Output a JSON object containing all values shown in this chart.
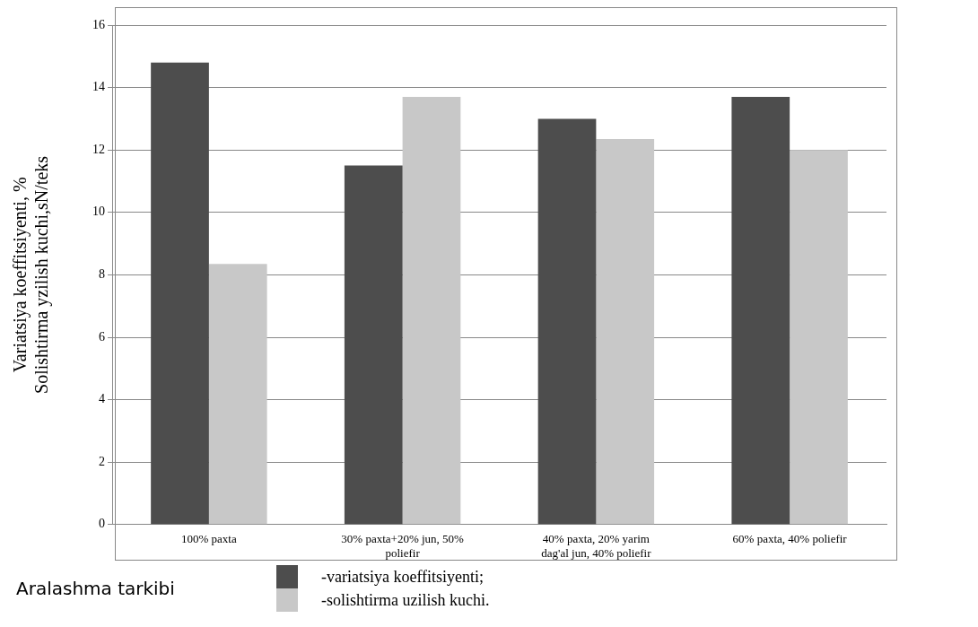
{
  "chart_data": {
    "type": "bar",
    "ylabel": "Variatsiya koeffitsiyenti, %\nSolishtirma yzilish kuchi,sN/teks",
    "xlabel": "Aralashma tarkibi",
    "categories": [
      "100% paxta",
      "30% paxta+20% jun, 50% poliefir",
      "40% paxta, 20% yarim dag'al jun, 40% poliefir",
      "60% paxta, 40% poliefir"
    ],
    "series": [
      {
        "name": "-variatsiya koeffitsiyenti;",
        "color": "#4d4d4d",
        "values": [
          14.8,
          11.5,
          13.0,
          13.7
        ]
      },
      {
        "name": "-solishtirma uzilish kuchi.",
        "color": "#c8c8c8",
        "values": [
          8.35,
          13.7,
          12.35,
          12.0
        ]
      }
    ],
    "ylim": [
      0,
      16
    ],
    "yticks": [
      0,
      2,
      4,
      6,
      8,
      10,
      12,
      14,
      16
    ],
    "grid": "y",
    "legend": "bottom"
  }
}
